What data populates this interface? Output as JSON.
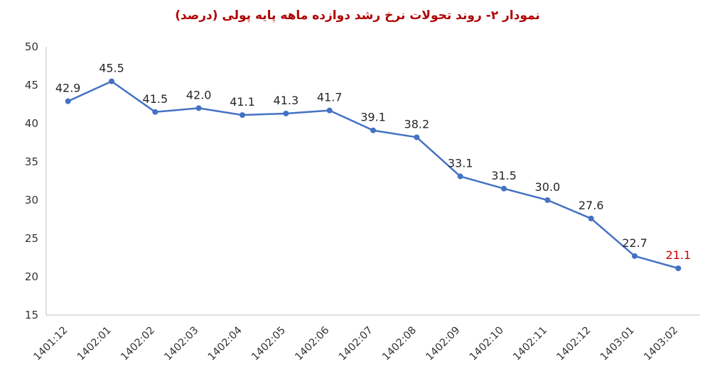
{
  "title": "نمودار ۲- روند تحولات نرخ رشد دوازده ماهه پایه پولی (درصد)",
  "title_color": "#B00000",
  "chart_data": {
    "type": "line",
    "title": "نمودار ۲- روند تحولات نرخ رشد دوازده ماهه پایه پولی (درصد)",
    "categories": [
      "1401:12",
      "1402:01",
      "1402:02",
      "1402:03",
      "1402:04",
      "1402:05",
      "1402:06",
      "1402:07",
      "1402:08",
      "1402:09",
      "1402:10",
      "1402:11",
      "1402:12",
      "1403:01",
      "1403:02"
    ],
    "values": [
      42.9,
      45.5,
      41.5,
      42.0,
      41.1,
      41.3,
      41.7,
      39.1,
      38.2,
      33.1,
      31.5,
      30.0,
      27.6,
      22.7,
      21.1
    ],
    "point_labels": [
      "42.9",
      "45.5",
      "41.5",
      "42.0",
      "41.1",
      "41.3",
      "41.7",
      "39.1",
      "38.2",
      "33.1",
      "31.5",
      "30.0",
      "27.6",
      "22.7",
      "21.1"
    ],
    "yticks": [
      15,
      20,
      25,
      30,
      35,
      40,
      45,
      50
    ],
    "ylim": [
      15,
      50
    ],
    "xlabel": "",
    "ylabel": "",
    "grid": false,
    "legend_position": "none",
    "line_color": "#4472C4",
    "marker_color": "#4472C4",
    "label_color": "#262626",
    "last_label_color": "#CE0000",
    "axis_color": "#BFBFBF",
    "tick_label_color": "#333333"
  }
}
